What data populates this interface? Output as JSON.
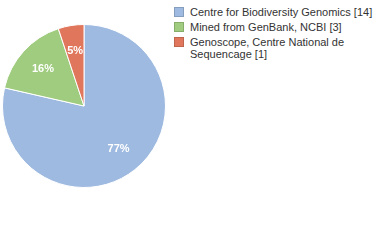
{
  "chart_data": {
    "type": "pie",
    "categories": [
      "Centre for Biodiversity Genomics [14]",
      "Mined from GenBank, NCBI [3]",
      "Genoscope, Centre National de Sequencage [1]"
    ],
    "values": [
      77,
      16,
      5
    ],
    "value_labels": [
      "77%",
      "16%",
      "5%"
    ],
    "colors": [
      "#9ebae0",
      "#9fcc7e",
      "#e0775c"
    ],
    "data_labels": true,
    "legend": "right"
  }
}
